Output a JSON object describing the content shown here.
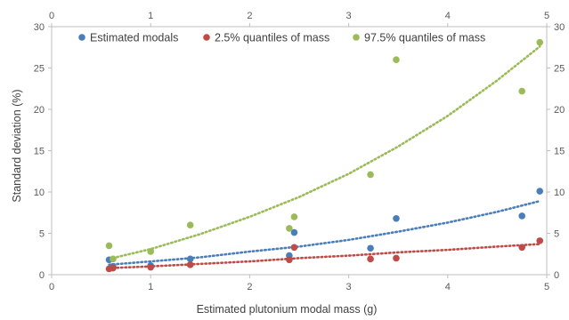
{
  "chart_data": {
    "type": "scatter",
    "title": "",
    "xlabel": "Estimated plutonium modal mass (g)",
    "ylabel": "Standard deviation  (%)",
    "xlim": [
      0,
      5
    ],
    "ylim": [
      0,
      30
    ],
    "x_ticks": [
      "0",
      "1",
      "2",
      "3",
      "4",
      "5"
    ],
    "y_ticks": [
      "0",
      "5",
      "10",
      "15",
      "20",
      "25",
      "30"
    ],
    "top_axis_ticks": [
      "0",
      "1",
      "2",
      "3",
      "4",
      "5"
    ],
    "right_axis_ticks": [
      "0",
      "5",
      "10",
      "15",
      "20",
      "25",
      "30"
    ],
    "grid": false,
    "legend_position": "top",
    "series": [
      {
        "name": "Estimated modals",
        "color": "#4a7ebb",
        "points": [
          [
            0.58,
            1.8
          ],
          [
            0.62,
            1.0
          ],
          [
            1.0,
            1.1
          ],
          [
            1.4,
            1.9
          ],
          [
            2.4,
            2.3
          ],
          [
            2.45,
            5.1
          ],
          [
            3.22,
            3.2
          ],
          [
            3.48,
            6.8
          ],
          [
            4.75,
            7.1
          ],
          [
            4.93,
            10.1
          ]
        ],
        "trendline": [
          [
            0.58,
            1.2
          ],
          [
            1.0,
            1.6
          ],
          [
            1.5,
            2.1
          ],
          [
            2.0,
            2.8
          ],
          [
            2.5,
            3.4
          ],
          [
            3.0,
            4.2
          ],
          [
            3.5,
            5.2
          ],
          [
            4.0,
            6.3
          ],
          [
            4.5,
            7.6
          ],
          [
            4.93,
            8.9
          ]
        ]
      },
      {
        "name": "2.5% quantiles of mass",
        "color": "#be4b48",
        "points": [
          [
            0.58,
            0.7
          ],
          [
            0.62,
            0.8
          ],
          [
            1.0,
            0.9
          ],
          [
            1.4,
            1.2
          ],
          [
            2.4,
            1.8
          ],
          [
            2.45,
            3.3
          ],
          [
            3.22,
            1.9
          ],
          [
            3.48,
            2.0
          ],
          [
            4.75,
            3.3
          ],
          [
            4.93,
            4.1
          ]
        ],
        "trendline": [
          [
            0.58,
            0.8
          ],
          [
            1.0,
            1.0
          ],
          [
            1.5,
            1.3
          ],
          [
            2.0,
            1.6
          ],
          [
            2.5,
            2.0
          ],
          [
            3.0,
            2.3
          ],
          [
            3.5,
            2.7
          ],
          [
            4.0,
            3.0
          ],
          [
            4.5,
            3.4
          ],
          [
            4.93,
            3.7
          ]
        ]
      },
      {
        "name": "97.5% quantiles of mass",
        "color": "#9bbb59",
        "points": [
          [
            0.58,
            3.5
          ],
          [
            0.62,
            1.9
          ],
          [
            1.0,
            2.8
          ],
          [
            1.4,
            6.0
          ],
          [
            2.4,
            5.6
          ],
          [
            2.45,
            7.0
          ],
          [
            3.22,
            12.1
          ],
          [
            3.48,
            26.0
          ],
          [
            4.75,
            22.2
          ],
          [
            4.93,
            28.1
          ]
        ],
        "trendline": [
          [
            0.58,
            1.9
          ],
          [
            1.0,
            3.1
          ],
          [
            1.5,
            4.9
          ],
          [
            2.0,
            7.0
          ],
          [
            2.5,
            9.4
          ],
          [
            3.0,
            12.2
          ],
          [
            3.5,
            15.5
          ],
          [
            4.0,
            19.2
          ],
          [
            4.5,
            23.5
          ],
          [
            4.93,
            27.6
          ]
        ]
      }
    ]
  }
}
